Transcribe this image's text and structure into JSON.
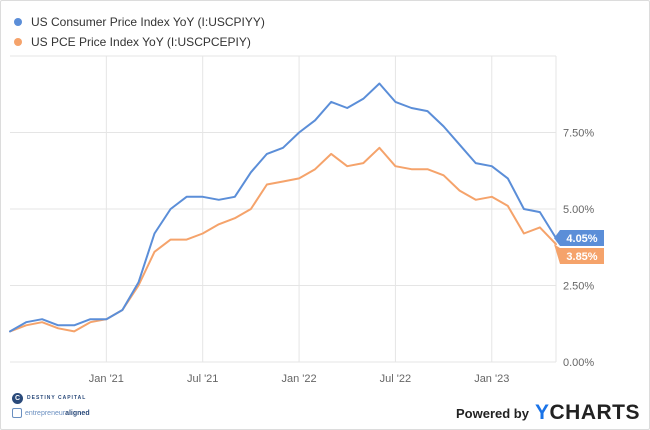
{
  "colors": {
    "cpi": "#5b8ed8",
    "pce": "#f5a36b",
    "grid": "#e5e5e5",
    "axis_text": "#666666"
  },
  "legend": [
    {
      "label": "US Consumer Price Index YoY (I:USCPIYY)",
      "color": "#5b8ed8"
    },
    {
      "label": "US PCE Price Index YoY (I:USCPCEPIY)",
      "color": "#f5a36b"
    }
  ],
  "chart_data": {
    "type": "line",
    "x": [
      "2020-07",
      "2020-08",
      "2020-09",
      "2020-10",
      "2020-11",
      "2020-12",
      "2021-01",
      "2021-02",
      "2021-03",
      "2021-04",
      "2021-05",
      "2021-06",
      "2021-07",
      "2021-08",
      "2021-09",
      "2021-10",
      "2021-11",
      "2021-12",
      "2022-01",
      "2022-02",
      "2022-03",
      "2022-04",
      "2022-05",
      "2022-06",
      "2022-07",
      "2022-08",
      "2022-09",
      "2022-10",
      "2022-11",
      "2022-12",
      "2023-01",
      "2023-02",
      "2023-03",
      "2023-04",
      "2023-05"
    ],
    "x_ticks": [
      {
        "date": "2021-01",
        "label": "Jan '21"
      },
      {
        "date": "2021-07",
        "label": "Jul '21"
      },
      {
        "date": "2022-01",
        "label": "Jan '22"
      },
      {
        "date": "2022-07",
        "label": "Jul '22"
      },
      {
        "date": "2023-01",
        "label": "Jan '23"
      }
    ],
    "y_ticks": [
      {
        "value": 0,
        "label": "0.00%"
      },
      {
        "value": 2.5,
        "label": "2.50%"
      },
      {
        "value": 5,
        "label": "5.00%"
      },
      {
        "value": 7.5,
        "label": "7.50%"
      }
    ],
    "ylim": [
      0,
      10
    ],
    "series": [
      {
        "name": "US Consumer Price Index YoY (I:USCPIYY)",
        "values": [
          1.0,
          1.3,
          1.4,
          1.2,
          1.2,
          1.4,
          1.4,
          1.7,
          2.6,
          4.2,
          5.0,
          5.4,
          5.4,
          5.3,
          5.4,
          6.2,
          6.8,
          7.0,
          7.5,
          7.9,
          8.5,
          8.3,
          8.6,
          9.1,
          8.5,
          8.3,
          8.2,
          7.7,
          7.1,
          6.5,
          6.4,
          6.0,
          5.0,
          4.9,
          4.05
        ],
        "last_label": "4.05%"
      },
      {
        "name": "US PCE Price Index YoY (I:USCPCEPIY)",
        "values": [
          1.0,
          1.2,
          1.3,
          1.1,
          1.0,
          1.3,
          1.4,
          1.7,
          2.5,
          3.6,
          4.0,
          4.0,
          4.2,
          4.5,
          4.7,
          5.0,
          5.8,
          5.9,
          6.0,
          6.3,
          6.8,
          6.4,
          6.5,
          7.0,
          6.4,
          6.3,
          6.3,
          6.1,
          5.6,
          5.3,
          5.4,
          5.1,
          4.2,
          4.4,
          3.85
        ],
        "last_label": "3.85%"
      }
    ],
    "grid": true,
    "legend_position": "top-left"
  },
  "footer": {
    "logo1": "DESTINY CAPITAL",
    "logo2_a": "entrepreneur",
    "logo2_b": "aligned",
    "powered_by": "Powered by",
    "brand_y": "Y",
    "brand_rest": "CHARTS"
  }
}
